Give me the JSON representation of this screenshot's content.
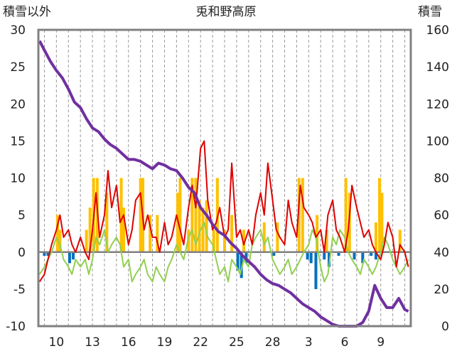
{
  "chart_data": {
    "type": "line",
    "title": "兎和野高原",
    "ylabel_left": "積雪以外",
    "ylabel_right": "積雪",
    "y_left_range": [
      -10,
      30
    ],
    "y_left_ticks": [
      "30",
      "25",
      "20",
      "15",
      "10",
      "5",
      "0",
      "-5",
      "-10"
    ],
    "y_right_range": [
      0,
      160
    ],
    "y_right_ticks": [
      "160",
      "140",
      "120",
      "100",
      "80",
      "60",
      "40",
      "20",
      "0"
    ],
    "x_range": [
      8.5,
      39.5
    ],
    "x_ticks": [
      {
        "day": 10,
        "label": "10"
      },
      {
        "day": 13,
        "label": "13"
      },
      {
        "day": 16,
        "label": "16"
      },
      {
        "day": 19,
        "label": "19"
      },
      {
        "day": 22,
        "label": "22"
      },
      {
        "day": 25,
        "label": "25"
      },
      {
        "day": 28,
        "label": "28"
      },
      {
        "day": 31,
        "label": "3"
      },
      {
        "day": 34,
        "label": "6"
      },
      {
        "day": 37,
        "label": "9"
      }
    ],
    "grid": "vertical dashed",
    "colors": {
      "precip": "#ffc000",
      "temp_max": "#e00000",
      "temp_min": "#92d050",
      "snow_change": "#0070c0",
      "snow_depth": "#7030a0",
      "frame": "#808080"
    },
    "series": [
      {
        "key": "snow_depth",
        "axis": "right",
        "x": [
          8.6,
          9,
          9.5,
          10,
          10.5,
          11,
          11.5,
          12,
          12.5,
          13,
          13.5,
          14,
          14.5,
          15,
          15.5,
          16,
          16.5,
          17,
          17.5,
          18,
          18.5,
          19,
          19.5,
          20,
          20.5,
          21,
          21.5,
          22,
          22.5,
          23,
          23.5,
          24,
          24.5,
          25,
          25.5,
          26,
          26.5,
          27,
          27.5,
          28,
          28.5,
          29,
          29.5,
          30,
          30.5,
          31,
          31.5,
          32,
          32.5,
          33,
          33.5,
          34,
          34.5,
          35,
          35.5,
          36,
          36.5,
          37,
          37.5,
          38,
          38.5,
          39,
          39.3
        ],
        "y": [
          154,
          149,
          143,
          138,
          134,
          128,
          121,
          118,
          112,
          107,
          105,
          101,
          98,
          96,
          93,
          90,
          90,
          89,
          87,
          85,
          88,
          87,
          85,
          84,
          80,
          75,
          72,
          64,
          60,
          55,
          51,
          49,
          45,
          42,
          38,
          35,
          32,
          28,
          25,
          23,
          22,
          20,
          18,
          15,
          12,
          10,
          8,
          5,
          3,
          1,
          0,
          0,
          0,
          0,
          2,
          8,
          22,
          15,
          10,
          10,
          15,
          9,
          8
        ]
      },
      {
        "key": "temp_max",
        "axis": "left",
        "x": [
          8.6,
          9,
          9.3,
          9.6,
          10,
          10.3,
          10.6,
          11,
          11.3,
          11.6,
          12,
          12.4,
          12.7,
          13,
          13.3,
          13.6,
          14,
          14.3,
          14.6,
          15,
          15.3,
          15.6,
          16,
          16.3,
          16.6,
          17,
          17.3,
          17.6,
          18,
          18.3,
          18.6,
          19,
          19.3,
          19.6,
          20,
          20.3,
          20.6,
          21,
          21.3,
          21.6,
          22,
          22.3,
          22.6,
          23,
          23.3,
          23.6,
          24,
          24.3,
          24.6,
          25,
          25.3,
          25.6,
          26,
          26.3,
          26.6,
          27,
          27.3,
          27.6,
          28,
          28.3,
          28.6,
          29,
          29.3,
          29.6,
          30,
          30.3,
          30.6,
          31,
          31.3,
          31.6,
          32,
          32.3,
          32.6,
          33,
          33.3,
          33.6,
          34,
          34.3,
          34.6,
          35,
          35.3,
          35.6,
          36,
          36.3,
          36.6,
          37,
          37.3,
          37.6,
          38,
          38.3,
          38.6,
          39,
          39.3
        ],
        "y": [
          -4,
          -3,
          -1,
          1,
          3,
          5,
          2,
          3,
          1,
          0,
          2,
          0,
          -1,
          3,
          8,
          2,
          5,
          11,
          6,
          9,
          4,
          5,
          1,
          3,
          7,
          8,
          3,
          5,
          2,
          2,
          0,
          4,
          1,
          2,
          5,
          3,
          1,
          6,
          9,
          6,
          14,
          15,
          7,
          3,
          4,
          6,
          2,
          3,
          12,
          2,
          3,
          1,
          3,
          1,
          5,
          8,
          5,
          12,
          7,
          3,
          2,
          1,
          7,
          4,
          2,
          9,
          6,
          5,
          4,
          2,
          3,
          0,
          5,
          7,
          3,
          2,
          0,
          3,
          9,
          6,
          4,
          2,
          3,
          1,
          0,
          -1,
          1,
          4,
          2,
          -2,
          1,
          0,
          -2
        ]
      },
      {
        "key": "temp_min",
        "axis": "left",
        "x": [
          8.6,
          9,
          9.3,
          9.6,
          10,
          10.3,
          10.6,
          11,
          11.3,
          11.6,
          12,
          12.4,
          12.7,
          13,
          13.3,
          13.6,
          14,
          14.3,
          14.6,
          15,
          15.3,
          15.6,
          16,
          16.3,
          16.6,
          17,
          17.3,
          17.6,
          18,
          18.3,
          18.6,
          19,
          19.3,
          19.6,
          20,
          20.3,
          20.6,
          21,
          21.3,
          21.6,
          22,
          22.3,
          22.6,
          23,
          23.3,
          23.6,
          24,
          24.3,
          24.6,
          25,
          25.3,
          25.6,
          26,
          26.3,
          26.6,
          27,
          27.3,
          27.6,
          28,
          28.3,
          28.6,
          29,
          29.3,
          29.6,
          30,
          30.3,
          30.6,
          31,
          31.3,
          31.6,
          32,
          32.3,
          32.6,
          33,
          33.3,
          33.6,
          34,
          34.3,
          34.6,
          35,
          35.3,
          35.6,
          36,
          36.3,
          36.6,
          37,
          37.3,
          37.6,
          38,
          38.3,
          38.6,
          39,
          39.3
        ],
        "y": [
          -3,
          -2,
          -1,
          0,
          2,
          1,
          -1,
          -2,
          -3,
          -1,
          -2,
          -1,
          -3,
          -1,
          2,
          1,
          3,
          0,
          1,
          2,
          1,
          -2,
          -1,
          -4,
          -3,
          -2,
          -1,
          -3,
          -4,
          -2,
          -3,
          -4,
          -2,
          -1,
          1,
          0,
          -1,
          2,
          3,
          1,
          3,
          4,
          2,
          1,
          -1,
          -3,
          -2,
          -4,
          -1,
          -2,
          -3,
          -1,
          -2,
          1,
          2,
          3,
          1,
          2,
          -1,
          -2,
          -3,
          -2,
          -1,
          -3,
          -2,
          -1,
          0,
          1,
          3,
          2,
          -2,
          -4,
          -3,
          2,
          1,
          3,
          2,
          0,
          -1,
          -2,
          -3,
          -1,
          -2,
          -3,
          -2,
          0,
          2,
          1,
          -1,
          -2,
          -3,
          -2,
          -1
        ]
      }
    ],
    "bars_precip": {
      "axis": "left",
      "x": [
        10.1,
        10.3,
        12.5,
        12.8,
        13.1,
        13.4,
        14.2,
        15.4,
        15.6,
        17.0,
        17.2,
        17.8,
        18.4,
        20.1,
        20.3,
        21.0,
        21.3,
        21.6,
        21.9,
        22.2,
        22.5,
        23.1,
        23.4,
        24.0,
        24.6,
        25.6,
        27.3,
        28.4,
        30.2,
        30.5,
        31.7,
        32.5,
        34.1,
        34.4,
        36.6,
        36.9,
        37.1,
        38.6
      ],
      "y": [
        5,
        3,
        3,
        6,
        10,
        10,
        8,
        10,
        6,
        10,
        10,
        5,
        5,
        8,
        10,
        3,
        10,
        10,
        7,
        6,
        7,
        3,
        10,
        3,
        5,
        3,
        4,
        4,
        10,
        10,
        5,
        3,
        10,
        8,
        4,
        10,
        8,
        3
      ]
    },
    "bars_snow_change": {
      "axis": "left",
      "x": [
        9.0,
        9.3,
        11.1,
        11.4,
        25.1,
        25.4,
        25.8,
        28.1,
        30.9,
        31.2,
        31.6,
        32.3,
        32.7,
        33.5,
        34.8,
        35.5,
        36.2,
        36.6
      ],
      "y": [
        -0.5,
        -0.5,
        -1.5,
        -1,
        -2.5,
        -3.5,
        -1.5,
        -0.5,
        -1,
        -1.5,
        -5,
        -1,
        -2,
        -0.5,
        -1,
        -1.5,
        -0.5,
        -1
      ]
    }
  }
}
